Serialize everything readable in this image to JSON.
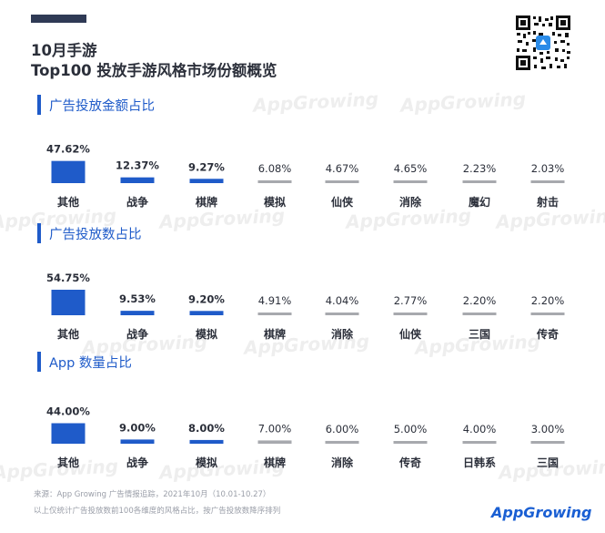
{
  "header": {
    "title_line1": "10月手游",
    "title_line2": "Top100 投放手游风格市场份额概览"
  },
  "watermark_text": "AppGrowing",
  "colors": {
    "primary": "#1f5bc9",
    "secondary": "#a7a9ae",
    "text": "#2b2f3a"
  },
  "chart_data": [
    {
      "type": "bar",
      "title": "广告投放金额占比",
      "categories": [
        "其他",
        "战争",
        "棋牌",
        "模拟",
        "仙侠",
        "消除",
        "魔幻",
        "射击"
      ],
      "value_labels": [
        "47.62%",
        "12.37%",
        "9.27%",
        "6.08%",
        "4.67%",
        "4.65%",
        "2.23%",
        "2.03%"
      ],
      "values": [
        47.62,
        12.37,
        9.27,
        6.08,
        4.67,
        4.65,
        2.23,
        2.03
      ],
      "highlight_count": 3
    },
    {
      "type": "bar",
      "title": "广告投放数占比",
      "categories": [
        "其他",
        "战争",
        "模拟",
        "棋牌",
        "消除",
        "仙侠",
        "三国",
        "传奇"
      ],
      "value_labels": [
        "54.75%",
        "9.53%",
        "9.20%",
        "4.91%",
        "4.04%",
        "2.77%",
        "2.20%",
        "2.20%"
      ],
      "values": [
        54.75,
        9.53,
        9.2,
        4.91,
        4.04,
        2.77,
        2.2,
        2.2
      ],
      "highlight_count": 3
    },
    {
      "type": "bar",
      "title": "App 数量占比",
      "categories": [
        "其他",
        "战争",
        "模拟",
        "棋牌",
        "消除",
        "传奇",
        "日韩系",
        "三国"
      ],
      "value_labels": [
        "44.00%",
        "9.00%",
        "8.00%",
        "7.00%",
        "6.00%",
        "5.00%",
        "4.00%",
        "3.00%"
      ],
      "values": [
        44,
        9,
        8,
        7,
        6,
        5,
        4,
        3
      ],
      "highlight_count": 3
    }
  ],
  "footer": {
    "source": "来源：App Growing 广告情报追踪，2021年10月（10.01-10.27）",
    "note": "以上仅统计广告投放数前100各维度的风格占比，按广告投放数降序排列"
  },
  "brand": {
    "part1": "App",
    "part2": "Growing"
  }
}
